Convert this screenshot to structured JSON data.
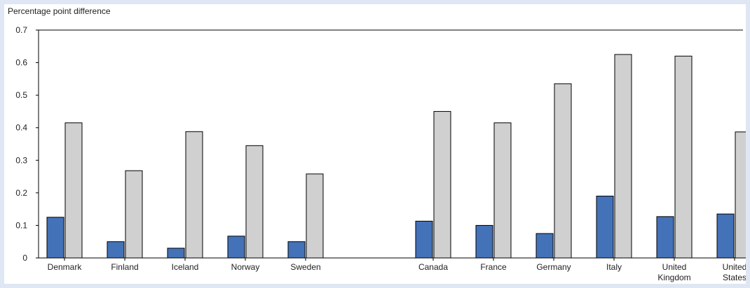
{
  "chart_data": {
    "type": "bar",
    "ylabel": "Percentage point difference",
    "ylim": [
      0,
      0.7
    ],
    "yticks": [
      "0",
      "0.1",
      "0.2",
      "0.3",
      "0.4",
      "0.5",
      "0.6",
      "0.7"
    ],
    "grid": false,
    "groups": [
      [
        "Denmark",
        "Finland",
        "Iceland",
        "Norway",
        "Sweden"
      ],
      [
        "Canada",
        "France",
        "Germany",
        "Italy",
        "United Kingdom",
        "United States"
      ]
    ],
    "categories": [
      [
        "Denmark"
      ],
      [
        "Finland"
      ],
      [
        "Iceland"
      ],
      [
        "Norway"
      ],
      [
        "Sweden"
      ],
      [
        "Canada"
      ],
      [
        "France"
      ],
      [
        "Germany"
      ],
      [
        "Italy"
      ],
      [
        "United",
        "Kingdom"
      ],
      [
        "United",
        "States"
      ]
    ],
    "series": [
      {
        "values": [
          0.125,
          0.05,
          0.03,
          0.067,
          0.05,
          0.113,
          0.1,
          0.075,
          0.19,
          0.127,
          0.135
        ]
      },
      {
        "values": [
          0.415,
          0.268,
          0.388,
          0.345,
          0.258,
          0.45,
          0.415,
          0.535,
          0.625,
          0.62,
          0.387
        ]
      }
    ],
    "colors": [
      "#4472b8",
      "#d0d0d0"
    ]
  }
}
